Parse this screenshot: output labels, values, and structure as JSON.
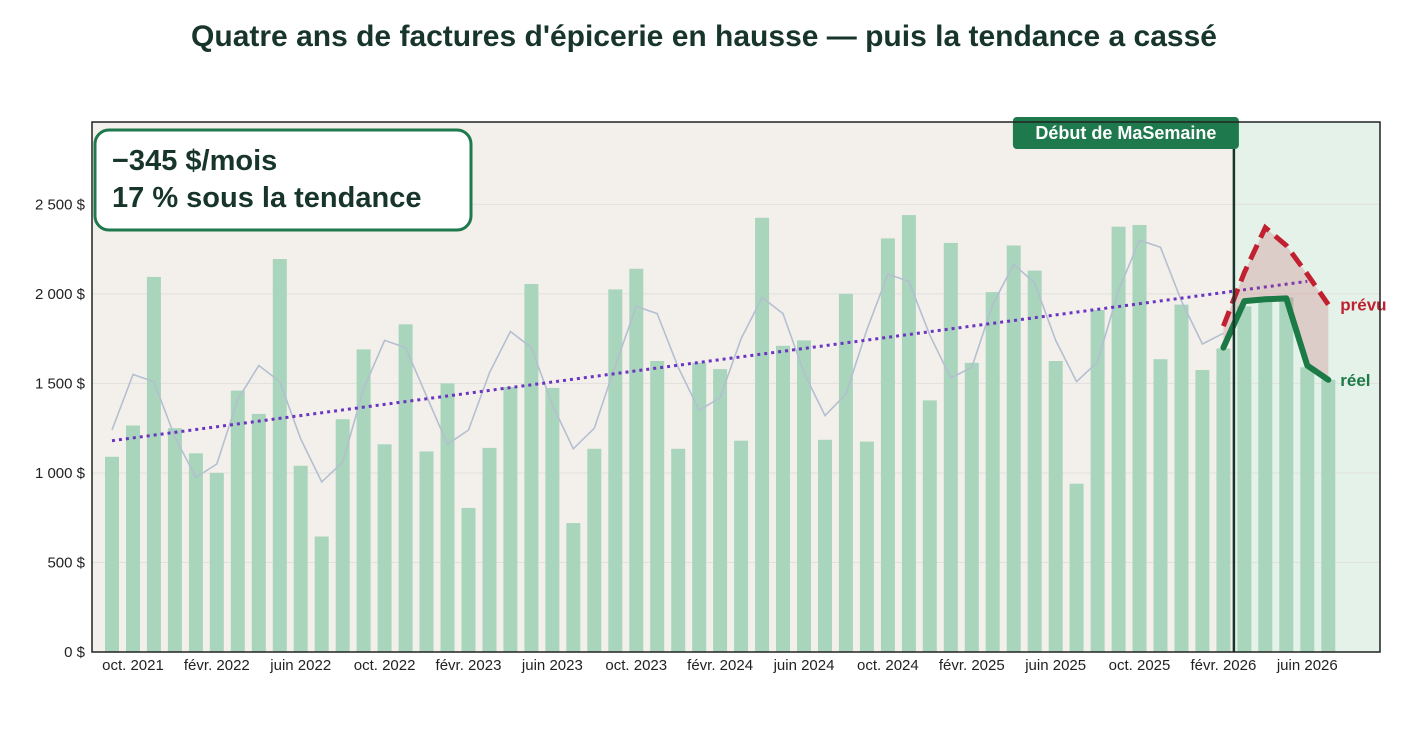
{
  "chart_data": {
    "type": "bar",
    "title": "Quatre ans de factures d'épicerie en hausse — puis la tendance a cassé",
    "xlabel": "",
    "ylabel": "",
    "ylim": [
      0,
      2960
    ],
    "y_ticks": [
      {
        "value": 0,
        "label": "0 $"
      },
      {
        "value": 500,
        "label": "500 $"
      },
      {
        "value": 1000,
        "label": "1 000 $"
      },
      {
        "value": 1500,
        "label": "1 500 $"
      },
      {
        "value": 2000,
        "label": "2 000 $"
      },
      {
        "value": 2500,
        "label": "2 500 $"
      }
    ],
    "x_ticks": [
      {
        "index": 1,
        "label": "oct. 2021"
      },
      {
        "index": 5,
        "label": "févr. 2022"
      },
      {
        "index": 9,
        "label": "juin 2022"
      },
      {
        "index": 13,
        "label": "oct. 2022"
      },
      {
        "index": 17,
        "label": "févr. 2023"
      },
      {
        "index": 21,
        "label": "juin 2023"
      },
      {
        "index": 25,
        "label": "oct. 2023"
      },
      {
        "index": 29,
        "label": "févr. 2024"
      },
      {
        "index": 33,
        "label": "juin 2024"
      },
      {
        "index": 37,
        "label": "oct. 2024"
      },
      {
        "index": 41,
        "label": "févr. 2025"
      },
      {
        "index": 45,
        "label": "juin 2025"
      },
      {
        "index": 49,
        "label": "oct. 2025"
      },
      {
        "index": 53,
        "label": "févr. 2026"
      },
      {
        "index": 57,
        "label": "juin 2026"
      }
    ],
    "series": [
      {
        "kind": "bars",
        "values": [
          1090,
          1265,
          2095,
          1250,
          1110,
          1000,
          1460,
          1330,
          2195,
          1040,
          645,
          1300,
          1690,
          1160,
          1830,
          1120,
          1500,
          805,
          1140,
          1480,
          2055,
          1475,
          720,
          1135,
          2025,
          2140,
          1625,
          1135,
          1615,
          1580,
          1180,
          2425,
          1710,
          1740,
          1185,
          2000,
          1175,
          2310,
          2440,
          1405,
          2285,
          1615,
          2010,
          2270,
          2130,
          1625,
          940,
          1910,
          2375,
          2385,
          1635,
          1940,
          1575,
          1695,
          1930,
          1970,
          1980,
          1590,
          1520
        ],
        "color": "#a8d5bb"
      },
      {
        "kind": "thin-line",
        "values": [
          1240,
          1550,
          1510,
          1200,
          975,
          1050,
          1410,
          1600,
          1510,
          1190,
          950,
          1060,
          1470,
          1740,
          1700,
          1430,
          1160,
          1240,
          1560,
          1790,
          1700,
          1380,
          1135,
          1250,
          1600,
          1930,
          1890,
          1590,
          1350,
          1420,
          1750,
          1980,
          1890,
          1560,
          1320,
          1440,
          1800,
          2110,
          2070,
          1770,
          1530,
          1590,
          1940,
          2165,
          2060,
          1740,
          1510,
          1620,
          2020,
          2300,
          2260,
          1960,
          1720,
          1780
        ],
        "color": "#b4bfd0"
      },
      {
        "kind": "trend",
        "start": {
          "index": 0,
          "value": 1180
        },
        "end": {
          "index": 57,
          "value": 2070
        },
        "color": "#6b35c2"
      },
      {
        "name": "prévu",
        "kind": "forecast",
        "indices": [
          53,
          54,
          55,
          56,
          57,
          58
        ],
        "values": [
          1820,
          2120,
          2370,
          2270,
          2110,
          1940
        ],
        "color": "#c0202f"
      },
      {
        "name": "réel",
        "kind": "actual",
        "indices": [
          53,
          54,
          55,
          56,
          57,
          58
        ],
        "values": [
          1700,
          1960,
          1970,
          1975,
          1600,
          1520
        ],
        "color": "#1b7a45"
      }
    ],
    "marker": {
      "index": 53.5,
      "label": "Début de MaSemaine",
      "color": "#1e7a4c",
      "line_color": "#17352a"
    },
    "shaded_region": {
      "from_index": 53.5,
      "color": "#e4f2ea"
    },
    "annotation": {
      "line1": "−345 $/mois",
      "line2": "17 % sous la tendance",
      "border_color": "#1e7a4c"
    },
    "background": "#f3f0ec",
    "grid": true,
    "legend": "inline labels at right end"
  }
}
